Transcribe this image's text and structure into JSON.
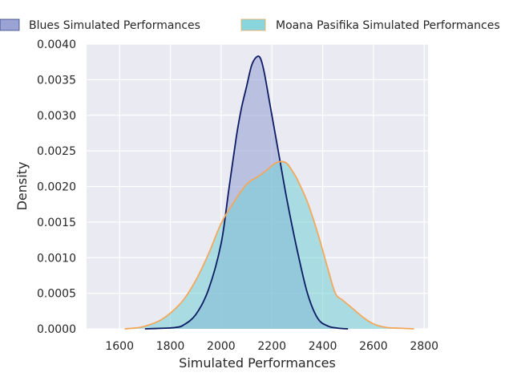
{
  "chart_data": {
    "type": "area",
    "title": "",
    "xlabel": "Simulated Performances",
    "ylabel": "Density",
    "xlim": [
      1470,
      2815
    ],
    "ylim": [
      0,
      0.004
    ],
    "grid": true,
    "legend_position": "top",
    "x_ticks": [
      1600,
      1800,
      2000,
      2200,
      2400,
      2600,
      2800
    ],
    "x_tick_labels": [
      "1600",
      "1800",
      "2000",
      "2200",
      "2400",
      "2600",
      "2800"
    ],
    "y_ticks": [
      0,
      0.0005,
      0.001,
      0.0015,
      0.002,
      0.0025,
      0.003,
      0.0035,
      0.004
    ],
    "y_tick_labels": [
      "0.0000",
      "0.0005",
      "0.0010",
      "0.0015",
      "0.0020",
      "0.0025",
      "0.0030",
      "0.0035",
      "0.0040"
    ],
    "series": [
      {
        "name": "Blues Simulated Performances",
        "line_color": "#0b1a63",
        "fill_color": "#9aa3d4",
        "fill_opacity": 0.6,
        "x": [
          1700,
          1780,
          1820,
          1850,
          1900,
          1950,
          2000,
          2030,
          2060,
          2080,
          2100,
          2120,
          2140,
          2155,
          2170,
          2190,
          2210,
          2230,
          2260,
          2300,
          2340,
          2380,
          2420,
          2460,
          2500
        ],
        "y": [
          0.0,
          1e-05,
          2e-05,
          5e-05,
          0.0002,
          0.00055,
          0.0012,
          0.00195,
          0.0027,
          0.0031,
          0.0034,
          0.0037,
          0.00382,
          0.0038,
          0.0036,
          0.0032,
          0.0028,
          0.0024,
          0.0018,
          0.0011,
          0.0005,
          0.00015,
          4e-05,
          1e-05,
          0.0
        ]
      },
      {
        "name": "Moana Pasifika Simulated Performances",
        "line_color": "#f2a85c",
        "fill_color": "#72cfd6",
        "fill_opacity": 0.55,
        "x": [
          1620,
          1680,
          1720,
          1760,
          1800,
          1850,
          1900,
          1950,
          2000,
          2050,
          2100,
          2150,
          2180,
          2210,
          2240,
          2260,
          2280,
          2300,
          2340,
          2380,
          2420,
          2450,
          2480,
          2520,
          2560,
          2600,
          2650,
          2700,
          2760
        ],
        "y": [
          0.0,
          2e-05,
          6e-05,
          0.00012,
          0.00022,
          0.0004,
          0.00068,
          0.00105,
          0.00148,
          0.00178,
          0.00203,
          0.00215,
          0.00223,
          0.00232,
          0.00235,
          0.00232,
          0.00222,
          0.0021,
          0.00178,
          0.00135,
          0.00085,
          0.0005,
          0.0004,
          0.00028,
          0.00016,
          7e-05,
          2e-05,
          1e-05,
          0.0
        ]
      }
    ]
  }
}
